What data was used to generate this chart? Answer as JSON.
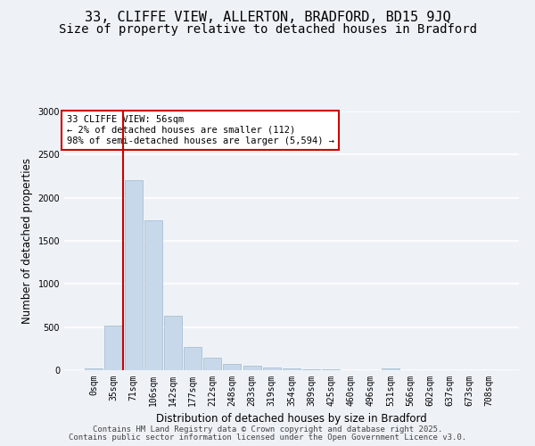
{
  "title1": "33, CLIFFE VIEW, ALLERTON, BRADFORD, BD15 9JQ",
  "title2": "Size of property relative to detached houses in Bradford",
  "xlabel": "Distribution of detached houses by size in Bradford",
  "ylabel": "Number of detached properties",
  "categories": [
    "0sqm",
    "35sqm",
    "71sqm",
    "106sqm",
    "142sqm",
    "177sqm",
    "212sqm",
    "248sqm",
    "283sqm",
    "319sqm",
    "354sqm",
    "389sqm",
    "425sqm",
    "460sqm",
    "496sqm",
    "531sqm",
    "566sqm",
    "602sqm",
    "637sqm",
    "673sqm",
    "708sqm"
  ],
  "values": [
    25,
    520,
    2200,
    1740,
    630,
    270,
    150,
    75,
    50,
    35,
    25,
    15,
    10,
    5,
    5,
    20,
    5,
    5,
    5,
    5,
    5
  ],
  "bar_color": "#c8d8eb",
  "bar_edge_color": "#a0b8cc",
  "vline_x_data": 1.5,
  "vline_color": "#cc0000",
  "annotation_text": "33 CLIFFE VIEW: 56sqm\n← 2% of detached houses are smaller (112)\n98% of semi-detached houses are larger (5,594) →",
  "annotation_box_color": "#ffffff",
  "annotation_box_edge_color": "#cc0000",
  "ylim": [
    0,
    3000
  ],
  "yticks": [
    0,
    500,
    1000,
    1500,
    2000,
    2500,
    3000
  ],
  "background_color": "#eef2f7",
  "grid_color": "#ffffff",
  "footer_line1": "Contains HM Land Registry data © Crown copyright and database right 2025.",
  "footer_line2": "Contains public sector information licensed under the Open Government Licence v3.0.",
  "title1_fontsize": 11,
  "title2_fontsize": 10,
  "axis_label_fontsize": 8.5,
  "tick_fontsize": 7,
  "annotation_fontsize": 7.5,
  "footer_fontsize": 6.5
}
